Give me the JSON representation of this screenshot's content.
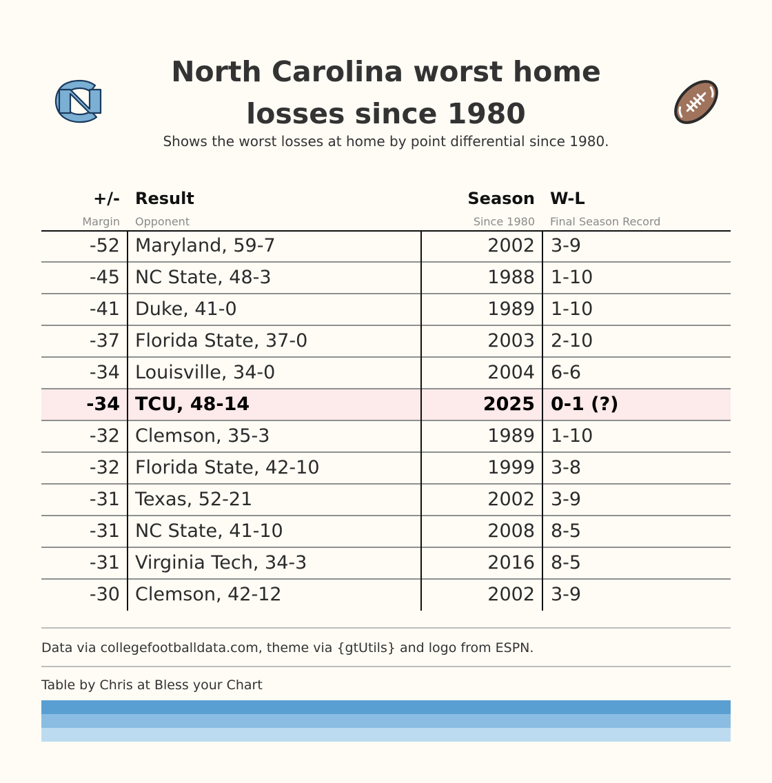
{
  "header": {
    "title_line1": "North Carolina worst home",
    "title_line2": "losses since 1980",
    "subtitle": "Shows the worst losses at home by point differential since 1980."
  },
  "icons": {
    "left": "nc-logo-icon",
    "right": "football-icon"
  },
  "colors": {
    "background": "#fefcf5",
    "highlight_row": "#fdeaea",
    "carolina_blue": "#7bafd4",
    "strip_1": "#5a9fd2",
    "strip_2": "#8bbde2",
    "strip_3": "#bddbf0"
  },
  "chart_data": {
    "type": "table",
    "title": "North Carolina worst home losses since 1980",
    "subtitle": "Shows the worst losses at home by point differential since 1980.",
    "columns": [
      {
        "label": "+/-",
        "sublabel": "Margin"
      },
      {
        "label": "Result",
        "sublabel": "Opponent"
      },
      {
        "label": "Season",
        "sublabel": "Since 1980"
      },
      {
        "label": "W-L",
        "sublabel": "Final Season Record"
      }
    ],
    "rows": [
      {
        "margin": "-52",
        "result": "Maryland, 59-7",
        "season": "2002",
        "wl": "3-9",
        "highlight": false
      },
      {
        "margin": "-45",
        "result": "NC State, 48-3",
        "season": "1988",
        "wl": "1-10",
        "highlight": false
      },
      {
        "margin": "-41",
        "result": "Duke, 41-0",
        "season": "1989",
        "wl": "1-10",
        "highlight": false
      },
      {
        "margin": "-37",
        "result": "Florida State, 37-0",
        "season": "2003",
        "wl": "2-10",
        "highlight": false
      },
      {
        "margin": "-34",
        "result": "Louisville, 34-0",
        "season": "2004",
        "wl": "6-6",
        "highlight": false
      },
      {
        "margin": "-34",
        "result": "TCU, 48-14",
        "season": "2025",
        "wl": "0-1 (?)",
        "highlight": true
      },
      {
        "margin": "-32",
        "result": "Clemson, 35-3",
        "season": "1989",
        "wl": "1-10",
        "highlight": false
      },
      {
        "margin": "-32",
        "result": "Florida State, 42-10",
        "season": "1999",
        "wl": "3-8",
        "highlight": false
      },
      {
        "margin": "-31",
        "result": "Texas, 52-21",
        "season": "2002",
        "wl": "3-9",
        "highlight": false
      },
      {
        "margin": "-31",
        "result": "NC State, 41-10",
        "season": "2008",
        "wl": "8-5",
        "highlight": false
      },
      {
        "margin": "-31",
        "result": "Virginia Tech, 34-3",
        "season": "2016",
        "wl": "8-5",
        "highlight": false
      },
      {
        "margin": "-30",
        "result": "Clemson, 42-12",
        "season": "2002",
        "wl": "3-9",
        "highlight": false
      }
    ]
  },
  "footer": {
    "source": "Data via collegefootballdata.com, theme via {gtUtils} and logo from ESPN.",
    "credit": "Table by Chris at Bless your Chart"
  }
}
